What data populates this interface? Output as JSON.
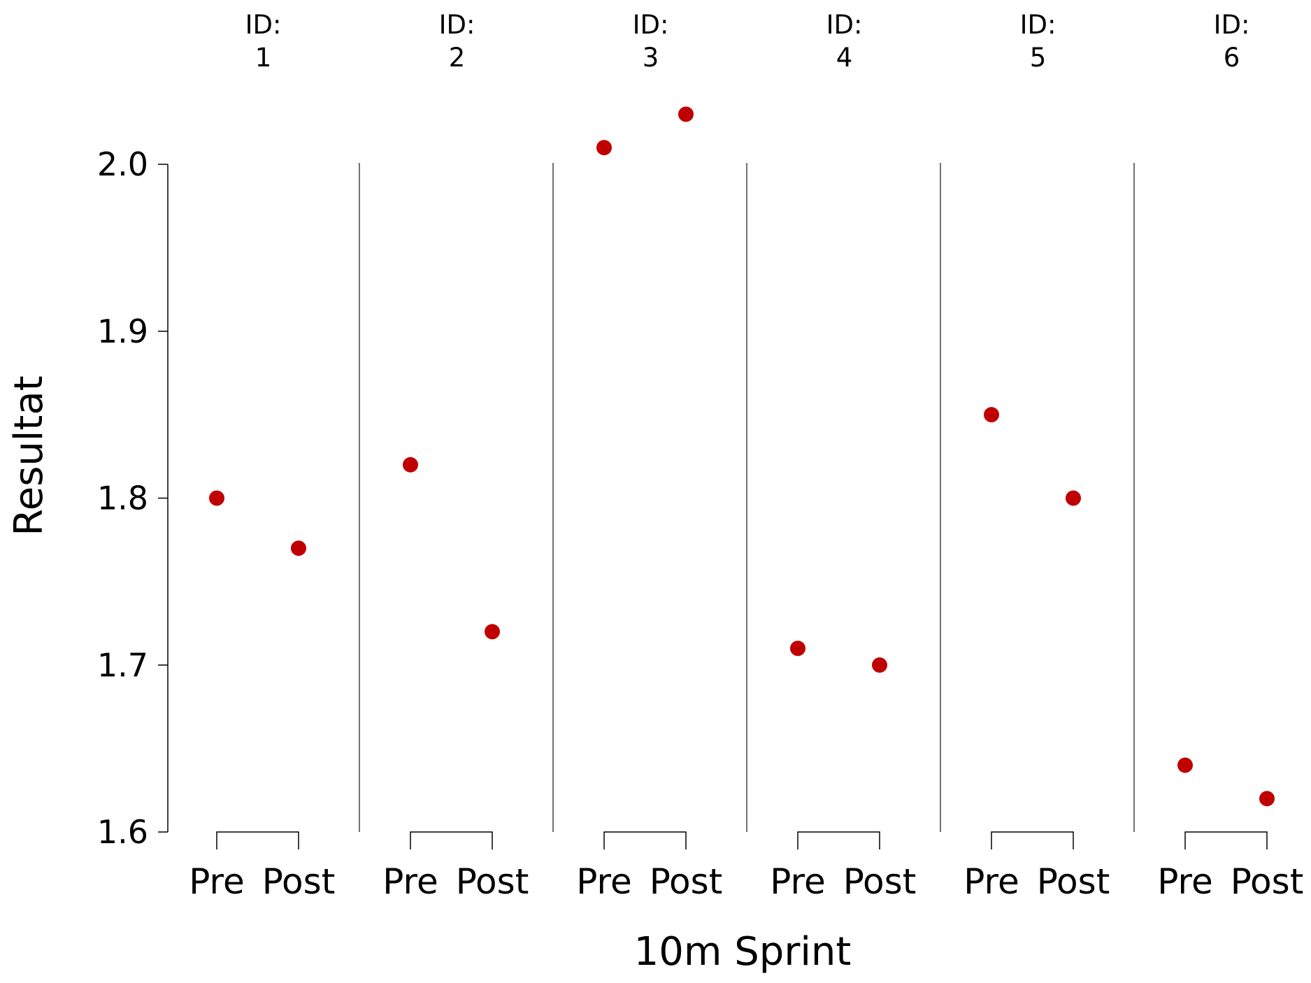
{
  "chart_data": {
    "type": "scatter",
    "xlabel": "10m Sprint",
    "ylabel": "Resultat",
    "ylim": [
      1.6,
      2.0
    ],
    "yticks": [
      "1.6",
      "1.7",
      "1.8",
      "1.9",
      "2.0"
    ],
    "categories": [
      "Pre",
      "Post"
    ],
    "panel_label_prefix": "ID:",
    "panels": [
      {
        "id": "1",
        "values": [
          1.8,
          1.77
        ]
      },
      {
        "id": "2",
        "values": [
          1.82,
          1.72
        ]
      },
      {
        "id": "3",
        "values": [
          2.01,
          2.03
        ]
      },
      {
        "id": "4",
        "values": [
          1.71,
          1.7
        ]
      },
      {
        "id": "5",
        "values": [
          1.85,
          1.8
        ]
      },
      {
        "id": "6",
        "values": [
          1.64,
          1.62
        ]
      }
    ],
    "point_color": "#c00000",
    "grid": false
  }
}
